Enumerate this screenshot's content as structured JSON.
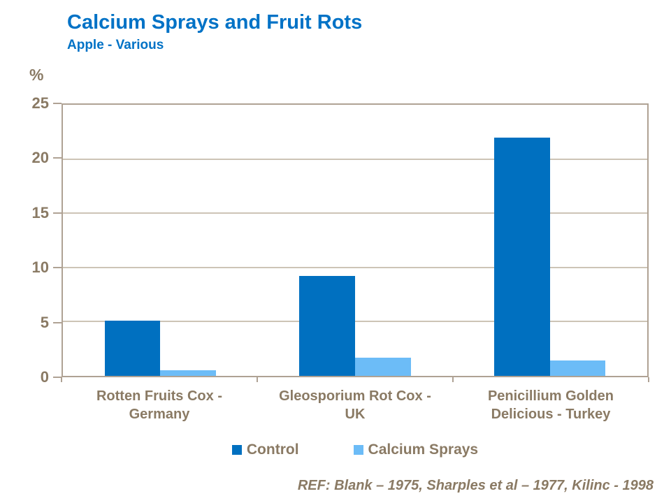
{
  "title": "Calcium Sprays and Fruit Rots",
  "subtitle": "Apple - Various",
  "y_axis_unit": "%",
  "reference": "REF: Blank – 1975, Sharples et al – 1977, Kilinc - 1998",
  "colors": {
    "title_blue": "#0072C6",
    "control_bar": "#0070C0",
    "calcium_bar": "#6CBCF7",
    "axis_text": "#8A7A64",
    "axis_line": "#AFA294",
    "gridline": "#CDC4B6"
  },
  "chart_data": {
    "type": "bar",
    "categories": [
      "Rotten Fruits Cox -\nGermany",
      "Gleosporium Rot Cox -\nUK",
      "Penicillium Golden\nDelicious - Turkey"
    ],
    "series": [
      {
        "name": "Control",
        "color": "#0070C0",
        "values": [
          5.1,
          9.2,
          22
        ]
      },
      {
        "name": "Calcium Sprays",
        "color": "#6CBCF7",
        "values": [
          0.5,
          1.7,
          1.4
        ]
      }
    ],
    "title": "Calcium Sprays and Fruit Rots",
    "subtitle": "Apple - Various",
    "xlabel": "",
    "ylabel": "%",
    "ylim": [
      0,
      25
    ],
    "yticks": [
      0,
      5,
      10,
      15,
      20,
      25
    ],
    "grid": true,
    "legend_position": "bottom"
  }
}
